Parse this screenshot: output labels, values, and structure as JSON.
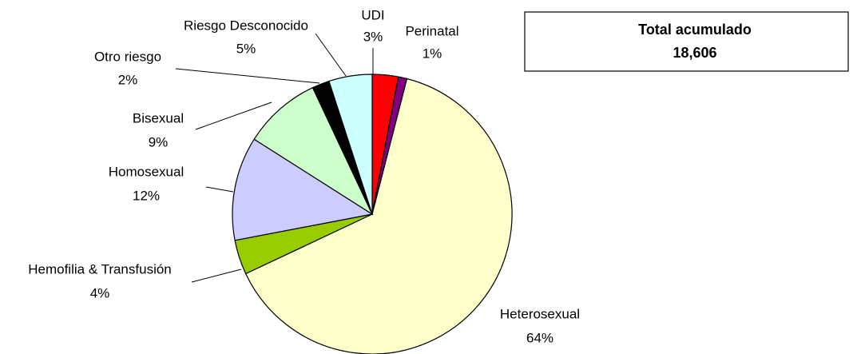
{
  "chart_data": {
    "type": "pie",
    "categories": [
      "UDI",
      "Perinatal",
      "Heterosexual",
      "Hemofilia & Transfusión",
      "Homosexual",
      "Bisexual",
      "Otro riesgo",
      "Riesgo Desconocido"
    ],
    "values": [
      3,
      1,
      64,
      4,
      12,
      9,
      2,
      5
    ],
    "value_labels": [
      "3%",
      "1%",
      "64%",
      "4%",
      "12%",
      "9%",
      "2%",
      "5%"
    ],
    "colors": [
      "#ff0000",
      "#800080",
      "#ffffcc",
      "#99cc00",
      "#ccccff",
      "#ccffcc",
      "#000000",
      "#ccffff"
    ],
    "annotations": [
      "Total acumulado",
      "18,606"
    ]
  }
}
